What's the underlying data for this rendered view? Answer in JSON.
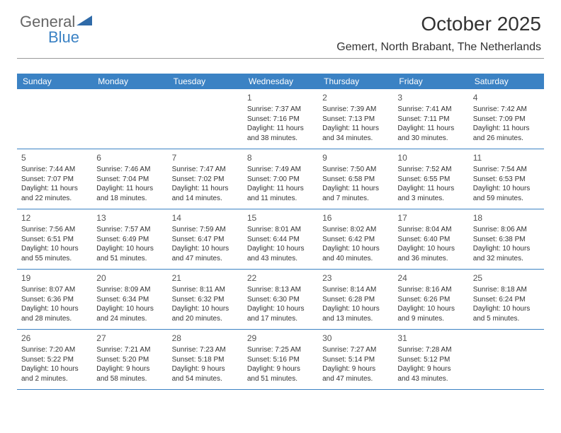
{
  "logo": {
    "text1": "General",
    "text2": "Blue",
    "triangle_color": "#2f6aa8"
  },
  "title": "October 2025",
  "location": "Gemert, North Brabant, The Netherlands",
  "colors": {
    "header_bg": "#3b82c4",
    "header_text": "#ffffff",
    "rule": "#3b82c4",
    "text": "#333333"
  },
  "weekdays": [
    "Sunday",
    "Monday",
    "Tuesday",
    "Wednesday",
    "Thursday",
    "Friday",
    "Saturday"
  ],
  "weeks": [
    [
      null,
      null,
      null,
      {
        "n": "1",
        "sr": "Sunrise: 7:37 AM",
        "ss": "Sunset: 7:16 PM",
        "d1": "Daylight: 11 hours",
        "d2": "and 38 minutes."
      },
      {
        "n": "2",
        "sr": "Sunrise: 7:39 AM",
        "ss": "Sunset: 7:13 PM",
        "d1": "Daylight: 11 hours",
        "d2": "and 34 minutes."
      },
      {
        "n": "3",
        "sr": "Sunrise: 7:41 AM",
        "ss": "Sunset: 7:11 PM",
        "d1": "Daylight: 11 hours",
        "d2": "and 30 minutes."
      },
      {
        "n": "4",
        "sr": "Sunrise: 7:42 AM",
        "ss": "Sunset: 7:09 PM",
        "d1": "Daylight: 11 hours",
        "d2": "and 26 minutes."
      }
    ],
    [
      {
        "n": "5",
        "sr": "Sunrise: 7:44 AM",
        "ss": "Sunset: 7:07 PM",
        "d1": "Daylight: 11 hours",
        "d2": "and 22 minutes."
      },
      {
        "n": "6",
        "sr": "Sunrise: 7:46 AM",
        "ss": "Sunset: 7:04 PM",
        "d1": "Daylight: 11 hours",
        "d2": "and 18 minutes."
      },
      {
        "n": "7",
        "sr": "Sunrise: 7:47 AM",
        "ss": "Sunset: 7:02 PM",
        "d1": "Daylight: 11 hours",
        "d2": "and 14 minutes."
      },
      {
        "n": "8",
        "sr": "Sunrise: 7:49 AM",
        "ss": "Sunset: 7:00 PM",
        "d1": "Daylight: 11 hours",
        "d2": "and 11 minutes."
      },
      {
        "n": "9",
        "sr": "Sunrise: 7:50 AM",
        "ss": "Sunset: 6:58 PM",
        "d1": "Daylight: 11 hours",
        "d2": "and 7 minutes."
      },
      {
        "n": "10",
        "sr": "Sunrise: 7:52 AM",
        "ss": "Sunset: 6:55 PM",
        "d1": "Daylight: 11 hours",
        "d2": "and 3 minutes."
      },
      {
        "n": "11",
        "sr": "Sunrise: 7:54 AM",
        "ss": "Sunset: 6:53 PM",
        "d1": "Daylight: 10 hours",
        "d2": "and 59 minutes."
      }
    ],
    [
      {
        "n": "12",
        "sr": "Sunrise: 7:56 AM",
        "ss": "Sunset: 6:51 PM",
        "d1": "Daylight: 10 hours",
        "d2": "and 55 minutes."
      },
      {
        "n": "13",
        "sr": "Sunrise: 7:57 AM",
        "ss": "Sunset: 6:49 PM",
        "d1": "Daylight: 10 hours",
        "d2": "and 51 minutes."
      },
      {
        "n": "14",
        "sr": "Sunrise: 7:59 AM",
        "ss": "Sunset: 6:47 PM",
        "d1": "Daylight: 10 hours",
        "d2": "and 47 minutes."
      },
      {
        "n": "15",
        "sr": "Sunrise: 8:01 AM",
        "ss": "Sunset: 6:44 PM",
        "d1": "Daylight: 10 hours",
        "d2": "and 43 minutes."
      },
      {
        "n": "16",
        "sr": "Sunrise: 8:02 AM",
        "ss": "Sunset: 6:42 PM",
        "d1": "Daylight: 10 hours",
        "d2": "and 40 minutes."
      },
      {
        "n": "17",
        "sr": "Sunrise: 8:04 AM",
        "ss": "Sunset: 6:40 PM",
        "d1": "Daylight: 10 hours",
        "d2": "and 36 minutes."
      },
      {
        "n": "18",
        "sr": "Sunrise: 8:06 AM",
        "ss": "Sunset: 6:38 PM",
        "d1": "Daylight: 10 hours",
        "d2": "and 32 minutes."
      }
    ],
    [
      {
        "n": "19",
        "sr": "Sunrise: 8:07 AM",
        "ss": "Sunset: 6:36 PM",
        "d1": "Daylight: 10 hours",
        "d2": "and 28 minutes."
      },
      {
        "n": "20",
        "sr": "Sunrise: 8:09 AM",
        "ss": "Sunset: 6:34 PM",
        "d1": "Daylight: 10 hours",
        "d2": "and 24 minutes."
      },
      {
        "n": "21",
        "sr": "Sunrise: 8:11 AM",
        "ss": "Sunset: 6:32 PM",
        "d1": "Daylight: 10 hours",
        "d2": "and 20 minutes."
      },
      {
        "n": "22",
        "sr": "Sunrise: 8:13 AM",
        "ss": "Sunset: 6:30 PM",
        "d1": "Daylight: 10 hours",
        "d2": "and 17 minutes."
      },
      {
        "n": "23",
        "sr": "Sunrise: 8:14 AM",
        "ss": "Sunset: 6:28 PM",
        "d1": "Daylight: 10 hours",
        "d2": "and 13 minutes."
      },
      {
        "n": "24",
        "sr": "Sunrise: 8:16 AM",
        "ss": "Sunset: 6:26 PM",
        "d1": "Daylight: 10 hours",
        "d2": "and 9 minutes."
      },
      {
        "n": "25",
        "sr": "Sunrise: 8:18 AM",
        "ss": "Sunset: 6:24 PM",
        "d1": "Daylight: 10 hours",
        "d2": "and 5 minutes."
      }
    ],
    [
      {
        "n": "26",
        "sr": "Sunrise: 7:20 AM",
        "ss": "Sunset: 5:22 PM",
        "d1": "Daylight: 10 hours",
        "d2": "and 2 minutes."
      },
      {
        "n": "27",
        "sr": "Sunrise: 7:21 AM",
        "ss": "Sunset: 5:20 PM",
        "d1": "Daylight: 9 hours",
        "d2": "and 58 minutes."
      },
      {
        "n": "28",
        "sr": "Sunrise: 7:23 AM",
        "ss": "Sunset: 5:18 PM",
        "d1": "Daylight: 9 hours",
        "d2": "and 54 minutes."
      },
      {
        "n": "29",
        "sr": "Sunrise: 7:25 AM",
        "ss": "Sunset: 5:16 PM",
        "d1": "Daylight: 9 hours",
        "d2": "and 51 minutes."
      },
      {
        "n": "30",
        "sr": "Sunrise: 7:27 AM",
        "ss": "Sunset: 5:14 PM",
        "d1": "Daylight: 9 hours",
        "d2": "and 47 minutes."
      },
      {
        "n": "31",
        "sr": "Sunrise: 7:28 AM",
        "ss": "Sunset: 5:12 PM",
        "d1": "Daylight: 9 hours",
        "d2": "and 43 minutes."
      },
      null
    ]
  ]
}
